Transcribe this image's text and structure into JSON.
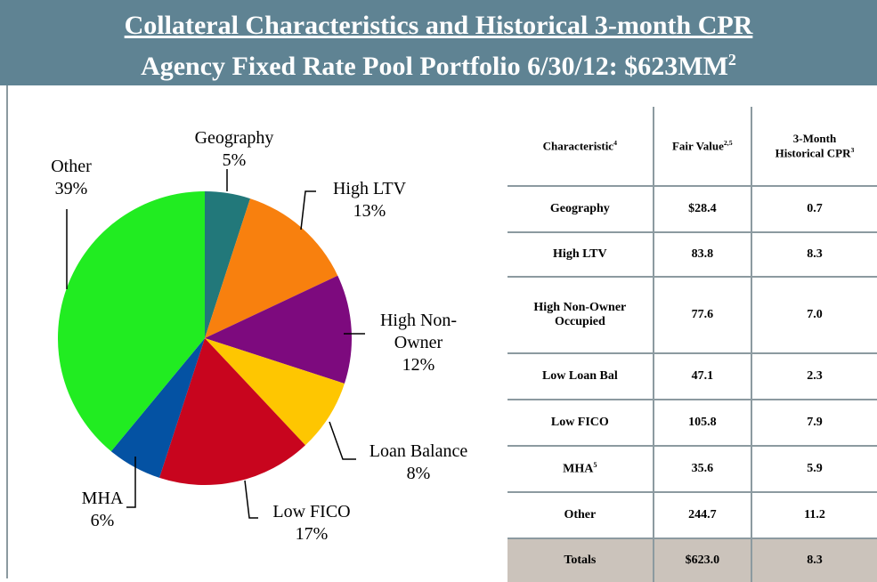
{
  "header": {
    "title": "Collateral Characteristics and Historical 3-month CPR",
    "subtitle": {
      "text": "Agency Fixed Rate Pool Portfolio 6/30/12: $623MM",
      "note": "2"
    }
  },
  "chart_data": {
    "type": "pie",
    "categories": [
      "Geography",
      "High LTV",
      "High Non-Owner",
      "Loan Balance",
      "Low FICO",
      "MHA",
      "Other"
    ],
    "values": [
      5,
      13,
      12,
      8,
      17,
      6,
      39
    ],
    "value_labels": [
      "5%",
      "13%",
      "12%",
      "8%",
      "17%",
      "6%",
      "39%"
    ],
    "colors": [
      "#22787a",
      "#f8800e",
      "#7d0a7e",
      "#fec601",
      "#c8051e",
      "#0452a3",
      "#21ec21"
    ]
  },
  "table": {
    "header": [
      {
        "text": "Characteristic",
        "note": "4"
      },
      {
        "text": "Fair Value",
        "note": "2,5"
      },
      {
        "text": "3-Month Historical CPR",
        "note": "3"
      }
    ],
    "rows": [
      [
        {
          "text": "Geography"
        },
        "$28.4",
        "0.7"
      ],
      [
        {
          "text": "High LTV"
        },
        "83.8",
        "8.3"
      ],
      [
        {
          "text": "High Non-Owner Occupied"
        },
        "77.6",
        "7.0"
      ],
      [
        {
          "text": "Low Loan Bal"
        },
        "47.1",
        "2.3"
      ],
      [
        {
          "text": "Low FICO"
        },
        "105.8",
        "7.9"
      ],
      [
        {
          "text": "MHA",
          "note": "5"
        },
        "35.6",
        "5.9"
      ],
      [
        {
          "text": "Other"
        },
        "244.7",
        "11.2"
      ]
    ],
    "totals": [
      "Totals",
      "$623.0",
      "8.3"
    ]
  }
}
